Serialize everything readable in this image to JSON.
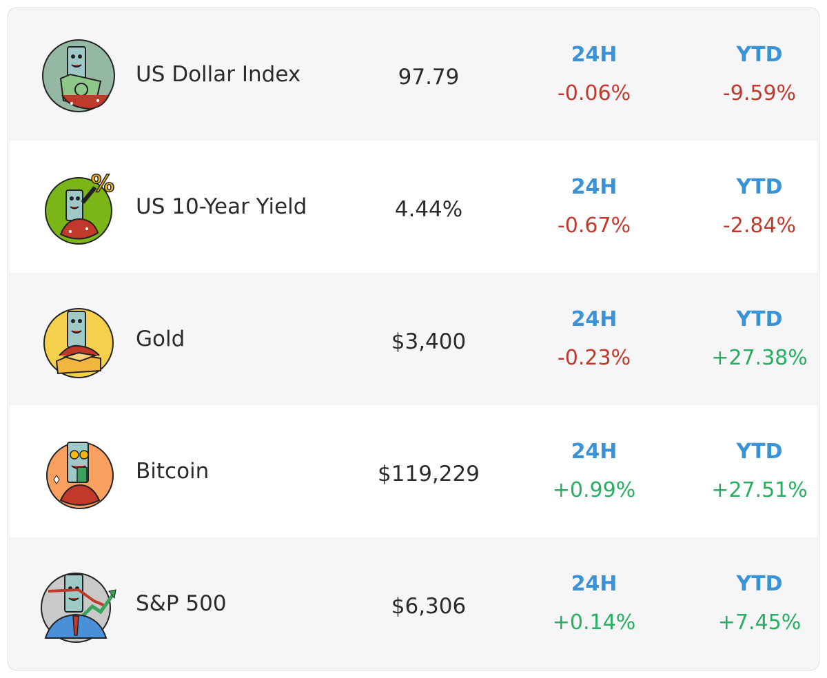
{
  "colors": {
    "label_blue": "#3a93d6",
    "negative_red": "#c0392b",
    "positive_green": "#27ae60",
    "text_dark": "#2b2b2b"
  },
  "header_labels": {
    "day": "24H",
    "ytd": "YTD"
  },
  "assets": [
    {
      "name": "US Dollar Index",
      "price": "97.79",
      "change_24h": "-0.06%",
      "change_ytd": "-9.59%",
      "icon": "dollar-character-icon",
      "icon_bg": "#94b8a4"
    },
    {
      "name": "US 10-Year Yield",
      "price": "4.44%",
      "change_24h": "-0.67%",
      "change_ytd": "-2.84%",
      "icon": "percent-character-icon",
      "icon_bg": "#7cb518"
    },
    {
      "name": "Gold",
      "price": "$3,400",
      "change_24h": "-0.23%",
      "change_ytd": "+27.38%",
      "icon": "gold-bars-character-icon",
      "icon_bg": "#f4d04c"
    },
    {
      "name": "Bitcoin",
      "price": "$119,229",
      "change_24h": "+0.99%",
      "change_ytd": "+27.51%",
      "icon": "bitcoin-character-icon",
      "icon_bg": "#f8a060"
    },
    {
      "name": "S&P 500",
      "price": "$6,306",
      "change_24h": "+0.14%",
      "change_ytd": "+7.45%",
      "icon": "stock-chart-character-icon",
      "icon_bg": "#c9c9c9"
    }
  ]
}
